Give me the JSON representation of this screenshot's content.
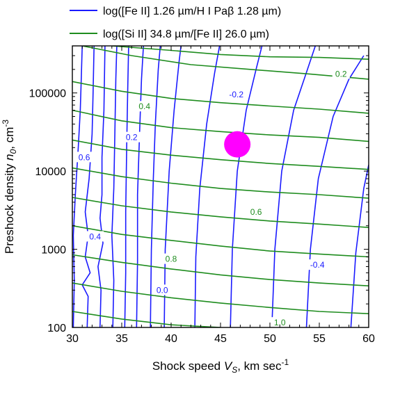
{
  "chart_data": {
    "type": "line",
    "xlabel": {
      "main": "Shock speed ",
      "var": "V",
      "sub": "S",
      "unit": ", km sec",
      "sup": "-1"
    },
    "ylabel": {
      "main": "Preshock density ",
      "var": "n",
      "sub": "0",
      "unit": ", cm",
      "sup": "-3"
    },
    "x_ticks": [
      "30",
      "35",
      "40",
      "45",
      "50",
      "55",
      "60"
    ],
    "y_ticks": [
      "100",
      "1000",
      "10000",
      "100000"
    ],
    "xlim": [
      30,
      60
    ],
    "ylim": [
      100,
      400000
    ],
    "yscale": "log",
    "legend_position": "top",
    "series": [
      {
        "name": "log([Fe II] 1.26 µm/H I Paβ 1.28 µm)",
        "color": "#1a1aff",
        "lines": [
          {
            "label": "0.6",
            "points": [
              [
                30.1,
                100
              ],
              [
                30.2,
                400
              ],
              [
                30.1,
                1500
              ],
              [
                30.3,
                5000
              ],
              [
                30.6,
                20000
              ],
              [
                30.8,
                60000
              ],
              [
                30.9,
                150000
              ],
              [
                31.0,
                400000
              ]
            ]
          },
          {
            "label": "",
            "points": [
              [
                31.5,
                100
              ],
              [
                31.6,
                250
              ],
              [
                31.0,
                350
              ],
              [
                31.8,
                500
              ],
              [
                31.3,
                800
              ],
              [
                31.6,
                1500
              ],
              [
                31.3,
                3000
              ],
              [
                31.7,
                8000
              ],
              [
                32.0,
                30000
              ],
              [
                32.1,
                100000
              ],
              [
                32.2,
                400000
              ]
            ]
          },
          {
            "label": "0.4",
            "points": [
              [
                32.8,
                100
              ],
              [
                32.9,
                300
              ],
              [
                32.6,
                600
              ],
              [
                33.1,
                1200
              ],
              [
                32.8,
                2500
              ],
              [
                33.0,
                5000
              ],
              [
                33.0,
                15000
              ],
              [
                33.2,
                60000
              ],
              [
                33.3,
                400000
              ]
            ]
          },
          {
            "label": "",
            "points": [
              [
                34.1,
                100
              ],
              [
                34.2,
                400
              ],
              [
                34.0,
                1500
              ],
              [
                34.2,
                6000
              ],
              [
                34.3,
                30000
              ],
              [
                34.4,
                150000
              ],
              [
                34.5,
                400000
              ]
            ]
          },
          {
            "label": "",
            "points": [
              [
                35.3,
                100
              ],
              [
                35.4,
                500
              ],
              [
                35.4,
                3000
              ],
              [
                35.5,
                20000
              ],
              [
                35.6,
                100000
              ],
              [
                35.7,
                400000
              ]
            ]
          },
          {
            "label": "0.2",
            "points": [
              [
                36.5,
                100
              ],
              [
                36.6,
                700
              ],
              [
                36.6,
                5000
              ],
              [
                36.8,
                30000
              ],
              [
                37.0,
                150000
              ],
              [
                37.2,
                400000
              ]
            ]
          },
          {
            "label": "",
            "points": [
              [
                37.9,
                100
              ],
              [
                38.0,
                1000
              ],
              [
                38.2,
                8000
              ],
              [
                38.4,
                40000
              ],
              [
                38.7,
                200000
              ],
              [
                38.9,
                400000
              ]
            ]
          },
          {
            "label": "0.0",
            "points": [
              [
                39.3,
                100
              ],
              [
                39.4,
                1000
              ],
              [
                39.8,
                10000
              ],
              [
                40.3,
                60000
              ],
              [
                40.8,
                250000
              ],
              [
                41.0,
                400000
              ]
            ]
          },
          {
            "label": "",
            "points": [
              [
                42.4,
                100
              ],
              [
                42.5,
                800
              ],
              [
                42.9,
                6000
              ],
              [
                43.6,
                40000
              ],
              [
                44.4,
                180000
              ],
              [
                44.9,
                400000
              ]
            ]
          },
          {
            "label": "-0.2",
            "points": [
              [
                46.0,
                100
              ],
              [
                46.2,
                1000
              ],
              [
                46.7,
                10000
              ],
              [
                47.6,
                60000
              ],
              [
                48.6,
                200000
              ],
              [
                49.2,
                400000
              ]
            ]
          },
          {
            "label": "",
            "points": [
              [
                50.2,
                100
              ],
              [
                50.5,
                1000
              ],
              [
                51.2,
                10000
              ],
              [
                52.4,
                60000
              ],
              [
                53.8,
                200000
              ],
              [
                54.6,
                400000
              ]
            ]
          },
          {
            "label": "-0.4",
            "points": [
              [
                53.7,
                100
              ],
              [
                54.1,
                1000
              ],
              [
                54.9,
                8000
              ],
              [
                56.4,
                50000
              ],
              [
                58.0,
                150000
              ],
              [
                59.5,
                300000
              ]
            ]
          },
          {
            "label": "",
            "points": [
              [
                58.2,
                100
              ],
              [
                58.7,
                900
              ],
              [
                59.5,
                6000
              ],
              [
                60.0,
                12000
              ]
            ]
          }
        ]
      },
      {
        "name": "log([Si II] 34.8 µm/[Fe II] 26.0 µm)",
        "color": "#1e8c1e",
        "lines": [
          {
            "label": "",
            "points": [
              [
                34.0,
                400000
              ],
              [
                40.0,
                350000
              ],
              [
                45.0,
                310000
              ],
              [
                50.0,
                290000
              ],
              [
                55.0,
                285000
              ],
              [
                60.0,
                270000
              ]
            ]
          },
          {
            "label": "0.2",
            "points": [
              [
                31.0,
                400000
              ],
              [
                36.0,
                300000
              ],
              [
                42.0,
                230000
              ],
              [
                48.0,
                200000
              ],
              [
                54.0,
                175000
              ],
              [
                60.0,
                150000
              ]
            ]
          },
          {
            "label": "",
            "points": [
              [
                30.0,
                140000
              ],
              [
                35.0,
                105000
              ],
              [
                40.0,
                85000
              ],
              [
                45.0,
                75000
              ],
              [
                50.0,
                68000
              ],
              [
                55.0,
                62000
              ],
              [
                60.0,
                55000
              ]
            ]
          },
          {
            "label": "0.4",
            "points": [
              [
                30.0,
                60000
              ],
              [
                35.0,
                44000
              ],
              [
                40.0,
                36000
              ],
              [
                45.0,
                32000
              ],
              [
                50.0,
                29000
              ],
              [
                55.0,
                27000
              ],
              [
                60.0,
                24000
              ]
            ]
          },
          {
            "label": "",
            "points": [
              [
                30.0,
                25000
              ],
              [
                35.0,
                19000
              ],
              [
                40.0,
                16000
              ],
              [
                45.0,
                14000
              ],
              [
                50.0,
                12500
              ],
              [
                55.0,
                11500
              ],
              [
                60.0,
                10500
              ]
            ]
          },
          {
            "label": "",
            "points": [
              [
                30.0,
                11000
              ],
              [
                35.0,
                8500
              ],
              [
                40.0,
                7000
              ],
              [
                45.0,
                6000
              ],
              [
                50.0,
                5400
              ],
              [
                55.0,
                5000
              ],
              [
                60.0,
                4500
              ]
            ]
          },
          {
            "label": "0.6",
            "points": [
              [
                30.0,
                4600
              ],
              [
                35.0,
                3600
              ],
              [
                40.0,
                3000
              ],
              [
                45.0,
                2600
              ],
              [
                50.0,
                2300
              ],
              [
                55.0,
                2100
              ],
              [
                60.0,
                1900
              ]
            ]
          },
          {
            "label": "",
            "points": [
              [
                30.0,
                2000
              ],
              [
                35.0,
                1550
              ],
              [
                40.0,
                1300
              ],
              [
                45.0,
                1100
              ],
              [
                50.0,
                950
              ],
              [
                55.0,
                870
              ],
              [
                60.0,
                800
              ]
            ]
          },
          {
            "label": "0.8",
            "points": [
              [
                30.0,
                850
              ],
              [
                35.0,
                680
              ],
              [
                40.0,
                560
              ],
              [
                45.0,
                470
              ],
              [
                50.0,
                410
              ],
              [
                55.0,
                370
              ],
              [
                60.0,
                340
              ]
            ]
          },
          {
            "label": "",
            "points": [
              [
                30.0,
                370
              ],
              [
                35.0,
                290
              ],
              [
                40.0,
                240
              ],
              [
                45.0,
                205
              ],
              [
                50.0,
                180
              ],
              [
                55.0,
                160
              ],
              [
                60.0,
                150
              ]
            ]
          },
          {
            "label": "1.0",
            "points": [
              [
                30.0,
                160
              ],
              [
                35.0,
                128
              ],
              [
                40.0,
                108
              ],
              [
                45.0,
                100
              ]
            ]
          }
        ]
      }
    ],
    "contour_label_positions": {
      "blue": [
        {
          "text": "0.6",
          "x": 31.2,
          "y": 15000
        },
        {
          "text": "0.4",
          "x": 32.3,
          "y": 1450
        },
        {
          "text": "0.2",
          "x": 36.0,
          "y": 27000
        },
        {
          "text": "0.0",
          "x": 39.1,
          "y": 300
        },
        {
          "text": "-0.2",
          "x": 46.6,
          "y": 95000
        },
        {
          "text": "-0.4",
          "x": 54.8,
          "y": 630
        }
      ],
      "green": [
        {
          "text": "0.2",
          "x": 57.2,
          "y": 175000
        },
        {
          "text": "0.4",
          "x": 37.3,
          "y": 67000
        },
        {
          "text": "0.6",
          "x": 48.6,
          "y": 3000
        },
        {
          "text": "0.8",
          "x": 40.0,
          "y": 750
        },
        {
          "text": "1.0",
          "x": 51.0,
          "y": 115
        }
      ]
    },
    "marker": {
      "x": 46.7,
      "y": 22000,
      "color": "#ff00ff",
      "shape": "filled-circle"
    },
    "grid": false
  }
}
